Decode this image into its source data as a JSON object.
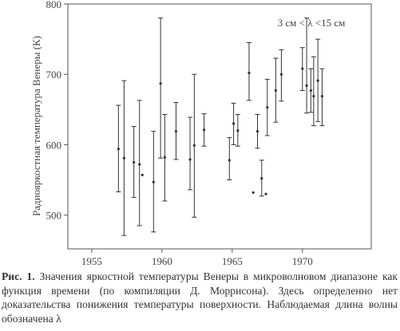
{
  "chart_data": {
    "type": "errorbar",
    "y_label": "Радиояркостная температура Венеры (К)",
    "annotation": "3 см < λ <15 см",
    "x": [
      1956.9,
      1957.3,
      1958.0,
      1958.4,
      1958.6,
      1959.4,
      1959.9,
      1960.2,
      1961.0,
      1962.0,
      1962.3,
      1963.0,
      1964.8,
      1965.1,
      1965.4,
      1966.2,
      1966.5,
      1966.8,
      1967.1,
      1967.4,
      1967.5,
      1968.1,
      1968.5,
      1970.0,
      1970.3,
      1970.6,
      1970.8,
      1971.1,
      1971.4
    ],
    "values": [
      594,
      581,
      575,
      572,
      557,
      547,
      687,
      582,
      619,
      579,
      599,
      621,
      578,
      630,
      620,
      702,
      532,
      619,
      552,
      530,
      653,
      677,
      700,
      708,
      684,
      677,
      669,
      691,
      669
    ],
    "upper": [
      656,
      691,
      626,
      663,
      null,
      619,
      780,
      643,
      660,
      639,
      700,
      644,
      610,
      659,
      643,
      745,
      null,
      643,
      578,
      null,
      693,
      723,
      735,
      738,
      780,
      708,
      725,
      750,
      708
    ],
    "lower": [
      533,
      471,
      525,
      485,
      null,
      476,
      581,
      520,
      579,
      536,
      497,
      598,
      550,
      600,
      598,
      663,
      null,
      595,
      527,
      null,
      613,
      632,
      662,
      677,
      645,
      646,
      627,
      633,
      627
    ],
    "color": "#333333",
    "xlim": [
      1953.3,
      1974.9
    ],
    "ylim": [
      452,
      800
    ],
    "xticks": [
      1955,
      1960,
      1965,
      1970
    ],
    "yticks": [
      500,
      600,
      700,
      800
    ],
    "caption_label": "Рис. 1.",
    "caption": "Значения яркостной температуры Венеры в микроволновом диапазоне как функция времени (по компиляции Д. Моррисона). Здесь определенно нет доказательства понижения температуры поверхности. Наблюдаемая длина волны обозначена λ"
  }
}
